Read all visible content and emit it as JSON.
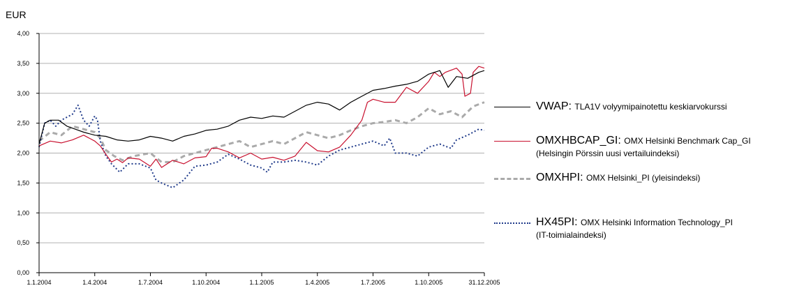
{
  "chart_data": {
    "type": "line",
    "ylabel": "EUR",
    "ylim": [
      0,
      4
    ],
    "yticks": [
      "0,00",
      "0,50",
      "1,00",
      "1,50",
      "2,00",
      "2,50",
      "3,00",
      "3,50",
      "4,00"
    ],
    "xticks": [
      "1.1.2004",
      "1.4.2004",
      "1.7.2004",
      "1.10.2004",
      "1.1.2005",
      "1.4.2005",
      "1.7.2005",
      "1.10.2005",
      "31.12.2005"
    ],
    "grid": true,
    "legend_position": "right",
    "series": [
      {
        "name": "VWAP:",
        "description": "TLA1V volyymipainotettu keskiarvokurssi",
        "color": "#000000",
        "dash": "solid",
        "points": [
          [
            0,
            2.15
          ],
          [
            0.1,
            2.5
          ],
          [
            0.2,
            2.55
          ],
          [
            0.35,
            2.55
          ],
          [
            0.5,
            2.45
          ],
          [
            0.65,
            2.4
          ],
          [
            0.8,
            2.35
          ],
          [
            1,
            2.3
          ],
          [
            1.2,
            2.28
          ],
          [
            1.4,
            2.22
          ],
          [
            1.6,
            2.2
          ],
          [
            1.8,
            2.22
          ],
          [
            2,
            2.28
          ],
          [
            2.2,
            2.25
          ],
          [
            2.4,
            2.2
          ],
          [
            2.6,
            2.28
          ],
          [
            2.8,
            2.32
          ],
          [
            3,
            2.38
          ],
          [
            3.2,
            2.4
          ],
          [
            3.4,
            2.45
          ],
          [
            3.6,
            2.55
          ],
          [
            3.8,
            2.6
          ],
          [
            4,
            2.58
          ],
          [
            4.2,
            2.62
          ],
          [
            4.4,
            2.6
          ],
          [
            4.6,
            2.7
          ],
          [
            4.8,
            2.8
          ],
          [
            5,
            2.85
          ],
          [
            5.2,
            2.82
          ],
          [
            5.4,
            2.72
          ],
          [
            5.6,
            2.85
          ],
          [
            5.8,
            2.95
          ],
          [
            6,
            3.05
          ],
          [
            6.2,
            3.08
          ],
          [
            6.4,
            3.12
          ],
          [
            6.6,
            3.15
          ],
          [
            6.8,
            3.2
          ],
          [
            7,
            3.32
          ],
          [
            7.2,
            3.38
          ],
          [
            7.35,
            3.1
          ],
          [
            7.5,
            3.28
          ],
          [
            7.7,
            3.25
          ],
          [
            7.9,
            3.35
          ],
          [
            8,
            3.38
          ]
        ]
      },
      {
        "name": "OMXHBCAP_GI:",
        "description": "OMX Helsinki Benchmark Cap_GI",
        "description2": "(Helsingin Pörssin uusi vertailuindeksi)",
        "color": "#c8102e",
        "dash": "solid",
        "points": [
          [
            0,
            2.12
          ],
          [
            0.2,
            2.2
          ],
          [
            0.4,
            2.17
          ],
          [
            0.6,
            2.22
          ],
          [
            0.8,
            2.3
          ],
          [
            1,
            2.2
          ],
          [
            1.1,
            2.12
          ],
          [
            1.2,
            1.98
          ],
          [
            1.3,
            1.85
          ],
          [
            1.4,
            1.9
          ],
          [
            1.5,
            1.84
          ],
          [
            1.6,
            1.92
          ],
          [
            1.8,
            1.9
          ],
          [
            2,
            1.78
          ],
          [
            2.1,
            1.9
          ],
          [
            2.2,
            1.76
          ],
          [
            2.4,
            1.88
          ],
          [
            2.6,
            1.82
          ],
          [
            2.8,
            1.92
          ],
          [
            3,
            1.94
          ],
          [
            3.1,
            2.08
          ],
          [
            3.2,
            2.08
          ],
          [
            3.4,
            2.02
          ],
          [
            3.6,
            1.92
          ],
          [
            3.8,
            2.0
          ],
          [
            4,
            1.9
          ],
          [
            4.2,
            1.93
          ],
          [
            4.4,
            1.88
          ],
          [
            4.6,
            1.95
          ],
          [
            4.8,
            2.18
          ],
          [
            5,
            2.04
          ],
          [
            5.2,
            2.02
          ],
          [
            5.4,
            2.1
          ],
          [
            5.6,
            2.3
          ],
          [
            5.8,
            2.55
          ],
          [
            5.9,
            2.85
          ],
          [
            6,
            2.9
          ],
          [
            6.2,
            2.85
          ],
          [
            6.4,
            2.85
          ],
          [
            6.6,
            3.1
          ],
          [
            6.8,
            3.0
          ],
          [
            7,
            3.2
          ],
          [
            7.1,
            3.35
          ],
          [
            7.2,
            3.28
          ],
          [
            7.3,
            3.35
          ],
          [
            7.5,
            3.42
          ],
          [
            7.6,
            3.32
          ],
          [
            7.65,
            2.95
          ],
          [
            7.75,
            3.0
          ],
          [
            7.8,
            3.35
          ],
          [
            7.9,
            3.45
          ],
          [
            8,
            3.42
          ]
        ]
      },
      {
        "name": "OMXHPI:",
        "description": "OMX Helsinki_PI (yleisindeksi)",
        "color": "#aaaaaa",
        "dash": "dashed",
        "points": [
          [
            0,
            2.2
          ],
          [
            0.2,
            2.35
          ],
          [
            0.4,
            2.3
          ],
          [
            0.6,
            2.45
          ],
          [
            0.8,
            2.4
          ],
          [
            1,
            2.35
          ],
          [
            1.1,
            2.25
          ],
          [
            1.2,
            2.05
          ],
          [
            1.35,
            1.95
          ],
          [
            1.5,
            1.88
          ],
          [
            1.7,
            1.95
          ],
          [
            2,
            2.0
          ],
          [
            2.2,
            1.85
          ],
          [
            2.4,
            1.85
          ],
          [
            2.6,
            1.95
          ],
          [
            2.8,
            2.0
          ],
          [
            3,
            2.05
          ],
          [
            3.2,
            2.1
          ],
          [
            3.4,
            2.15
          ],
          [
            3.6,
            2.2
          ],
          [
            3.8,
            2.1
          ],
          [
            4,
            2.15
          ],
          [
            4.2,
            2.2
          ],
          [
            4.4,
            2.15
          ],
          [
            4.6,
            2.25
          ],
          [
            4.8,
            2.35
          ],
          [
            5,
            2.3
          ],
          [
            5.2,
            2.25
          ],
          [
            5.4,
            2.3
          ],
          [
            5.6,
            2.38
          ],
          [
            5.8,
            2.45
          ],
          [
            6,
            2.5
          ],
          [
            6.2,
            2.52
          ],
          [
            6.4,
            2.55
          ],
          [
            6.6,
            2.5
          ],
          [
            6.8,
            2.6
          ],
          [
            7,
            2.75
          ],
          [
            7.2,
            2.65
          ],
          [
            7.4,
            2.7
          ],
          [
            7.6,
            2.6
          ],
          [
            7.8,
            2.78
          ],
          [
            8,
            2.85
          ]
        ]
      },
      {
        "name": "HX45PI:",
        "description": "OMX Helsinki Information Technology_PI",
        "description2": "(IT-toimialaindeksi)",
        "color": "#1f3a8a",
        "dash": "dotted",
        "points": [
          [
            0,
            2.1
          ],
          [
            0.1,
            2.5
          ],
          [
            0.2,
            2.55
          ],
          [
            0.3,
            2.45
          ],
          [
            0.4,
            2.55
          ],
          [
            0.5,
            2.6
          ],
          [
            0.6,
            2.65
          ],
          [
            0.7,
            2.8
          ],
          [
            0.8,
            2.55
          ],
          [
            0.9,
            2.45
          ],
          [
            1,
            2.62
          ],
          [
            1.05,
            2.55
          ],
          [
            1.1,
            2.2
          ],
          [
            1.2,
            1.95
          ],
          [
            1.3,
            1.82
          ],
          [
            1.45,
            1.68
          ],
          [
            1.6,
            1.82
          ],
          [
            1.8,
            1.82
          ],
          [
            2,
            1.75
          ],
          [
            2.1,
            1.55
          ],
          [
            2.2,
            1.5
          ],
          [
            2.4,
            1.42
          ],
          [
            2.6,
            1.55
          ],
          [
            2.8,
            1.78
          ],
          [
            3,
            1.8
          ],
          [
            3.2,
            1.85
          ],
          [
            3.4,
            1.98
          ],
          [
            3.6,
            1.9
          ],
          [
            3.8,
            1.8
          ],
          [
            4,
            1.75
          ],
          [
            4.1,
            1.68
          ],
          [
            4.2,
            1.85
          ],
          [
            4.4,
            1.85
          ],
          [
            4.6,
            1.88
          ],
          [
            4.8,
            1.85
          ],
          [
            5,
            1.8
          ],
          [
            5.2,
            1.95
          ],
          [
            5.4,
            2.05
          ],
          [
            5.6,
            2.1
          ],
          [
            5.8,
            2.15
          ],
          [
            6,
            2.2
          ],
          [
            6.2,
            2.12
          ],
          [
            6.3,
            2.25
          ],
          [
            6.4,
            2.0
          ],
          [
            6.6,
            2.0
          ],
          [
            6.8,
            1.95
          ],
          [
            7,
            2.1
          ],
          [
            7.2,
            2.15
          ],
          [
            7.4,
            2.08
          ],
          [
            7.5,
            2.22
          ],
          [
            7.7,
            2.3
          ],
          [
            7.9,
            2.4
          ],
          [
            8,
            2.38
          ]
        ]
      }
    ]
  }
}
